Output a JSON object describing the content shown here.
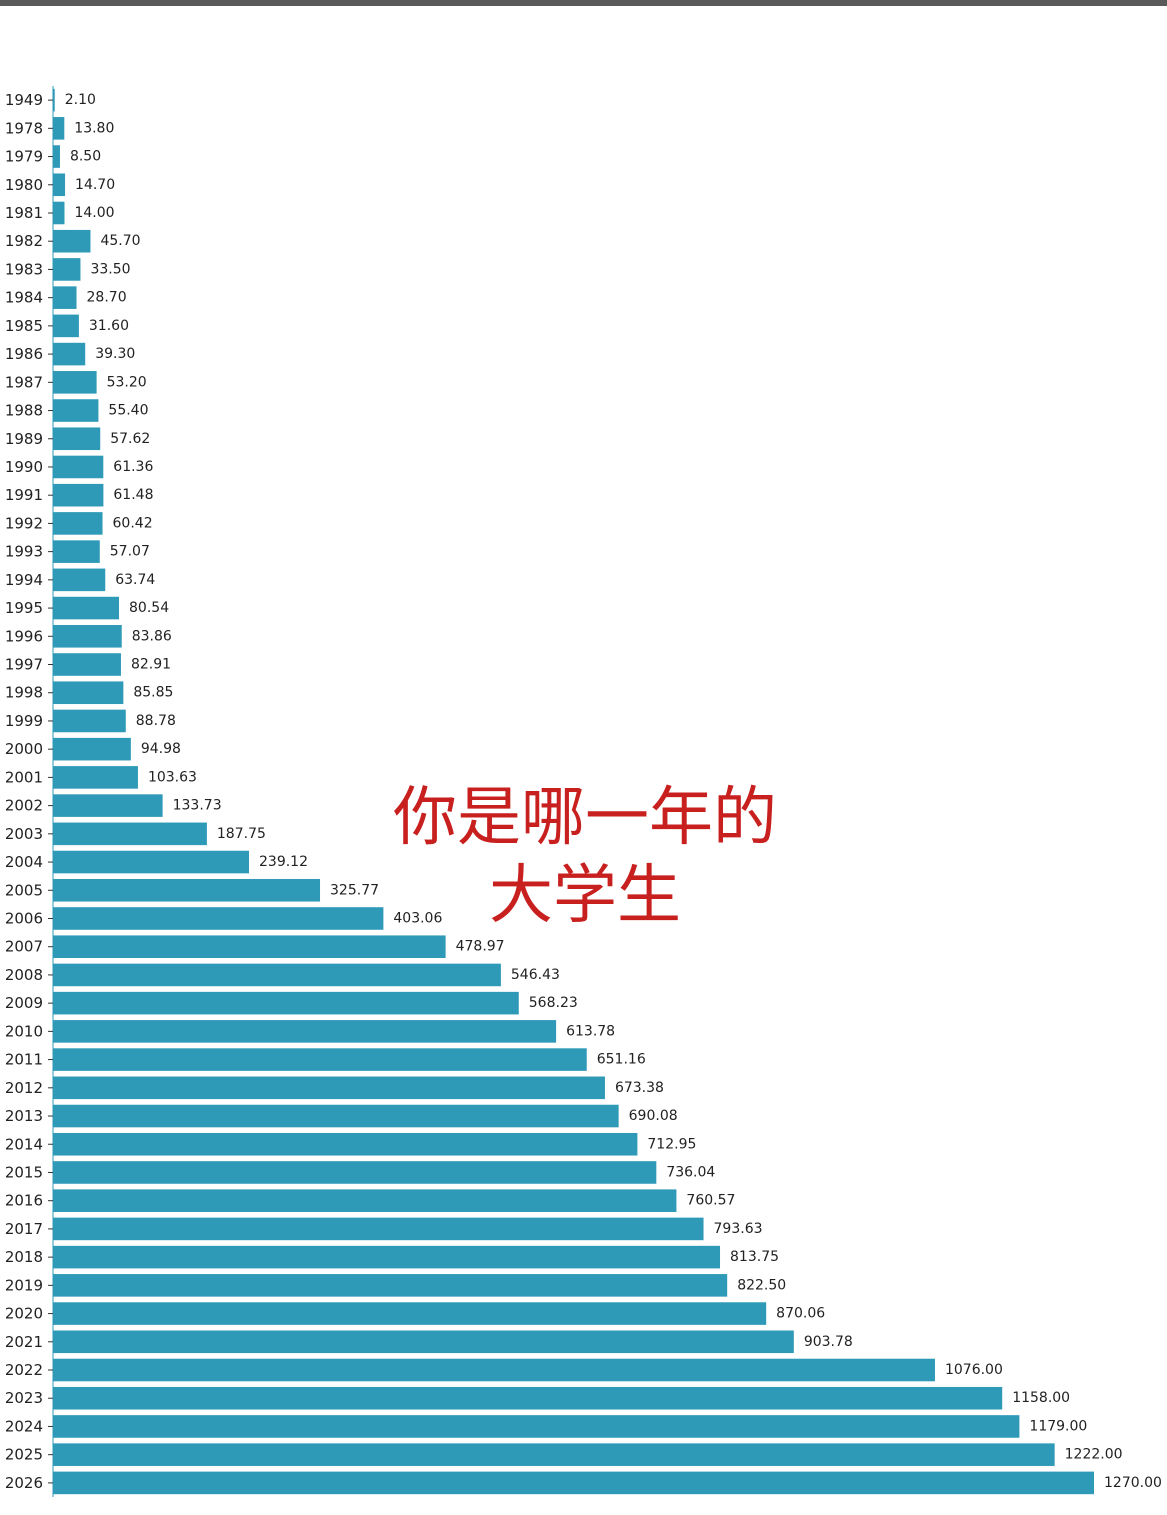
{
  "overlay_text": {
    "line1": "你是哪一年的",
    "line2": "大学生"
  },
  "colors": {
    "bar": "#2e9ab8",
    "title": "#c8201f",
    "axis": "#2e9ab8"
  },
  "chart_data": {
    "type": "bar",
    "orientation": "horizontal",
    "title": "",
    "xlabel": "",
    "ylabel": "",
    "grid": false,
    "categories": [
      "1949",
      "1978",
      "1979",
      "1980",
      "1981",
      "1982",
      "1983",
      "1984",
      "1985",
      "1986",
      "1987",
      "1988",
      "1989",
      "1990",
      "1991",
      "1992",
      "1993",
      "1994",
      "1995",
      "1996",
      "1997",
      "1998",
      "1999",
      "2000",
      "2001",
      "2002",
      "2003",
      "2004",
      "2005",
      "2006",
      "2007",
      "2008",
      "2009",
      "2010",
      "2011",
      "2012",
      "2013",
      "2014",
      "2015",
      "2016",
      "2017",
      "2018",
      "2019",
      "2020",
      "2021",
      "2022",
      "2023",
      "2024",
      "2025",
      "2026"
    ],
    "values": [
      2.1,
      13.8,
      8.5,
      14.7,
      14.0,
      45.7,
      33.5,
      28.7,
      31.6,
      39.3,
      53.2,
      55.4,
      57.62,
      61.36,
      61.48,
      60.42,
      57.07,
      63.74,
      80.54,
      83.86,
      82.91,
      85.85,
      88.78,
      94.98,
      103.63,
      133.73,
      187.75,
      239.12,
      325.77,
      403.06,
      478.97,
      546.43,
      568.23,
      613.78,
      651.16,
      673.38,
      690.08,
      712.95,
      736.04,
      760.57,
      793.63,
      813.75,
      822.5,
      870.06,
      903.78,
      1076.0,
      1158.0,
      1179.0,
      1222.0,
      1270.0
    ],
    "value_labels": [
      "2.10",
      "13.80",
      "8.50",
      "14.70",
      "14.00",
      "45.70",
      "33.50",
      "28.70",
      "31.60",
      "39.30",
      "53.20",
      "55.40",
      "57.62",
      "61.36",
      "61.48",
      "60.42",
      "57.07",
      "63.74",
      "80.54",
      "83.86",
      "82.91",
      "85.85",
      "88.78",
      "94.98",
      "103.63",
      "133.73",
      "187.75",
      "239.12",
      "325.77",
      "403.06",
      "478.97",
      "546.43",
      "568.23",
      "613.78",
      "651.16",
      "673.38",
      "690.08",
      "712.95",
      "736.04",
      "760.57",
      "793.63",
      "813.75",
      "822.50",
      "870.06",
      "903.78",
      "1076.00",
      "1158.00",
      "1179.00",
      "1222.00",
      "1270.00"
    ],
    "xlim": [
      0,
      1270
    ]
  }
}
